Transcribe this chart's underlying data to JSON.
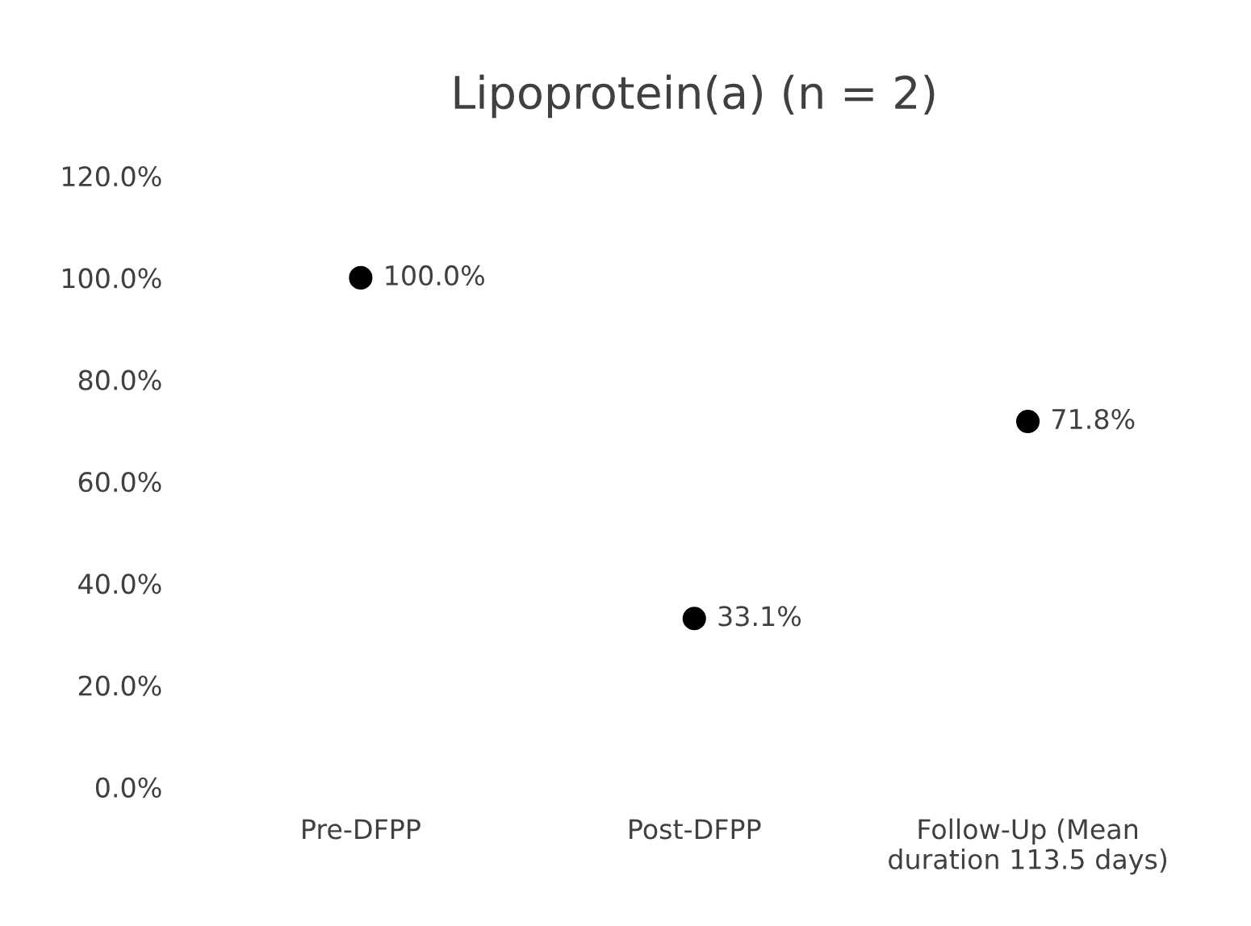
{
  "chart_data": {
    "type": "scatter",
    "title": "Lipoprotein(a) (n = 2)",
    "categories": [
      "Pre-DFPP",
      "Post-DFPP",
      "Follow-Up (Mean\nduration 113.5 days)"
    ],
    "series": [
      {
        "color": "#000000",
        "values": [
          100.0,
          33.1,
          71.8
        ],
        "value_labels": [
          "100.0%",
          "33.1%",
          "71.8%"
        ]
      }
    ],
    "ylim": [
      0,
      120
    ],
    "yticks": [
      {
        "value": 0,
        "label": "0.0%"
      },
      {
        "value": 20,
        "label": "20.0%"
      },
      {
        "value": 40,
        "label": "40.0%"
      },
      {
        "value": 60,
        "label": "60.0%"
      },
      {
        "value": 80,
        "label": "80.0%"
      },
      {
        "value": 100,
        "label": "100.0%"
      },
      {
        "value": 120,
        "label": "120.0%"
      }
    ],
    "marker": "circle",
    "grid": false
  }
}
